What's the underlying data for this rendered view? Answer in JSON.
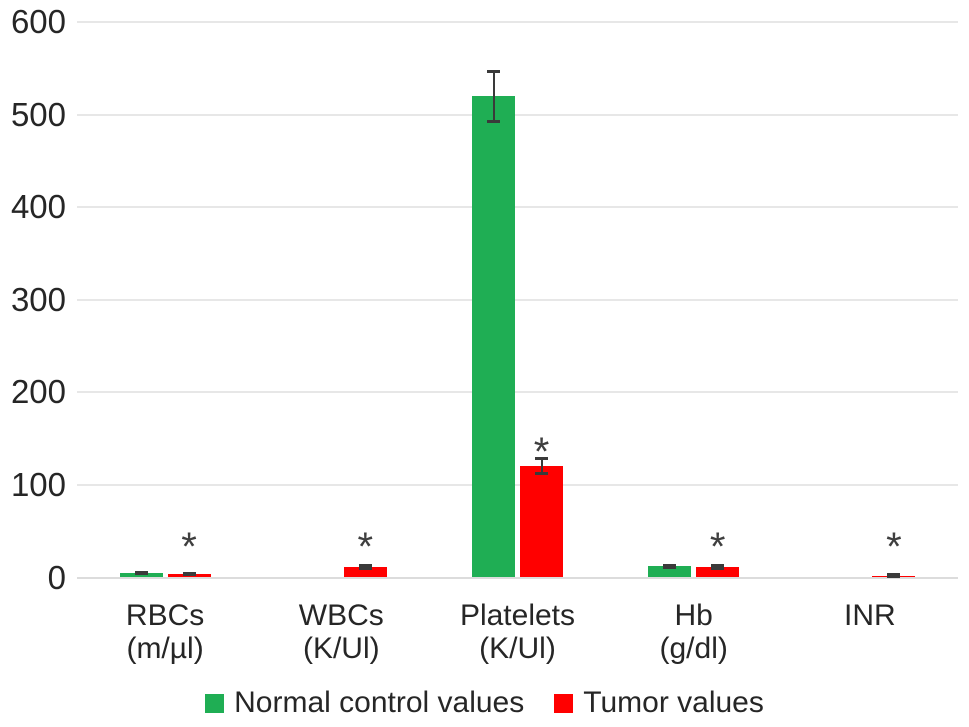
{
  "figure": {
    "background": "#ffffff",
    "text_color": "#262626",
    "gridline_color": "#e7e7e7",
    "baseline_color": "#dcdcdc",
    "error_bar_color": "#3a3a3a"
  },
  "chart_data": {
    "type": "bar",
    "title": "",
    "xlabel": "",
    "ylabel": "",
    "ylim": [
      0,
      600
    ],
    "yticks": [
      0,
      100,
      200,
      300,
      400,
      500,
      600
    ],
    "grid": true,
    "legend_position": "bottom",
    "categories": [
      "RBCs\n(m/µl)",
      "WBCs\n(K/Ul)",
      "Platelets\n(K/Ul)",
      "Hb\n(g/dl)",
      "INR"
    ],
    "series": [
      {
        "name": "Normal control values",
        "color": "#1fae54",
        "values": [
          5,
          0,
          520,
          12,
          0
        ],
        "errors": [
          0.7,
          0,
          27,
          1.5,
          0
        ],
        "significance": [
          "",
          "",
          "",
          "",
          ""
        ]
      },
      {
        "name": "Tumor values",
        "color": "#ff0000",
        "values": [
          4,
          11,
          120,
          11,
          2
        ],
        "errors": [
          0.7,
          1.5,
          8,
          1.5,
          0.8
        ],
        "significance": [
          "*",
          "*",
          "*",
          "*",
          "*"
        ]
      }
    ],
    "significance_marker_color": "#3f3f3f"
  }
}
